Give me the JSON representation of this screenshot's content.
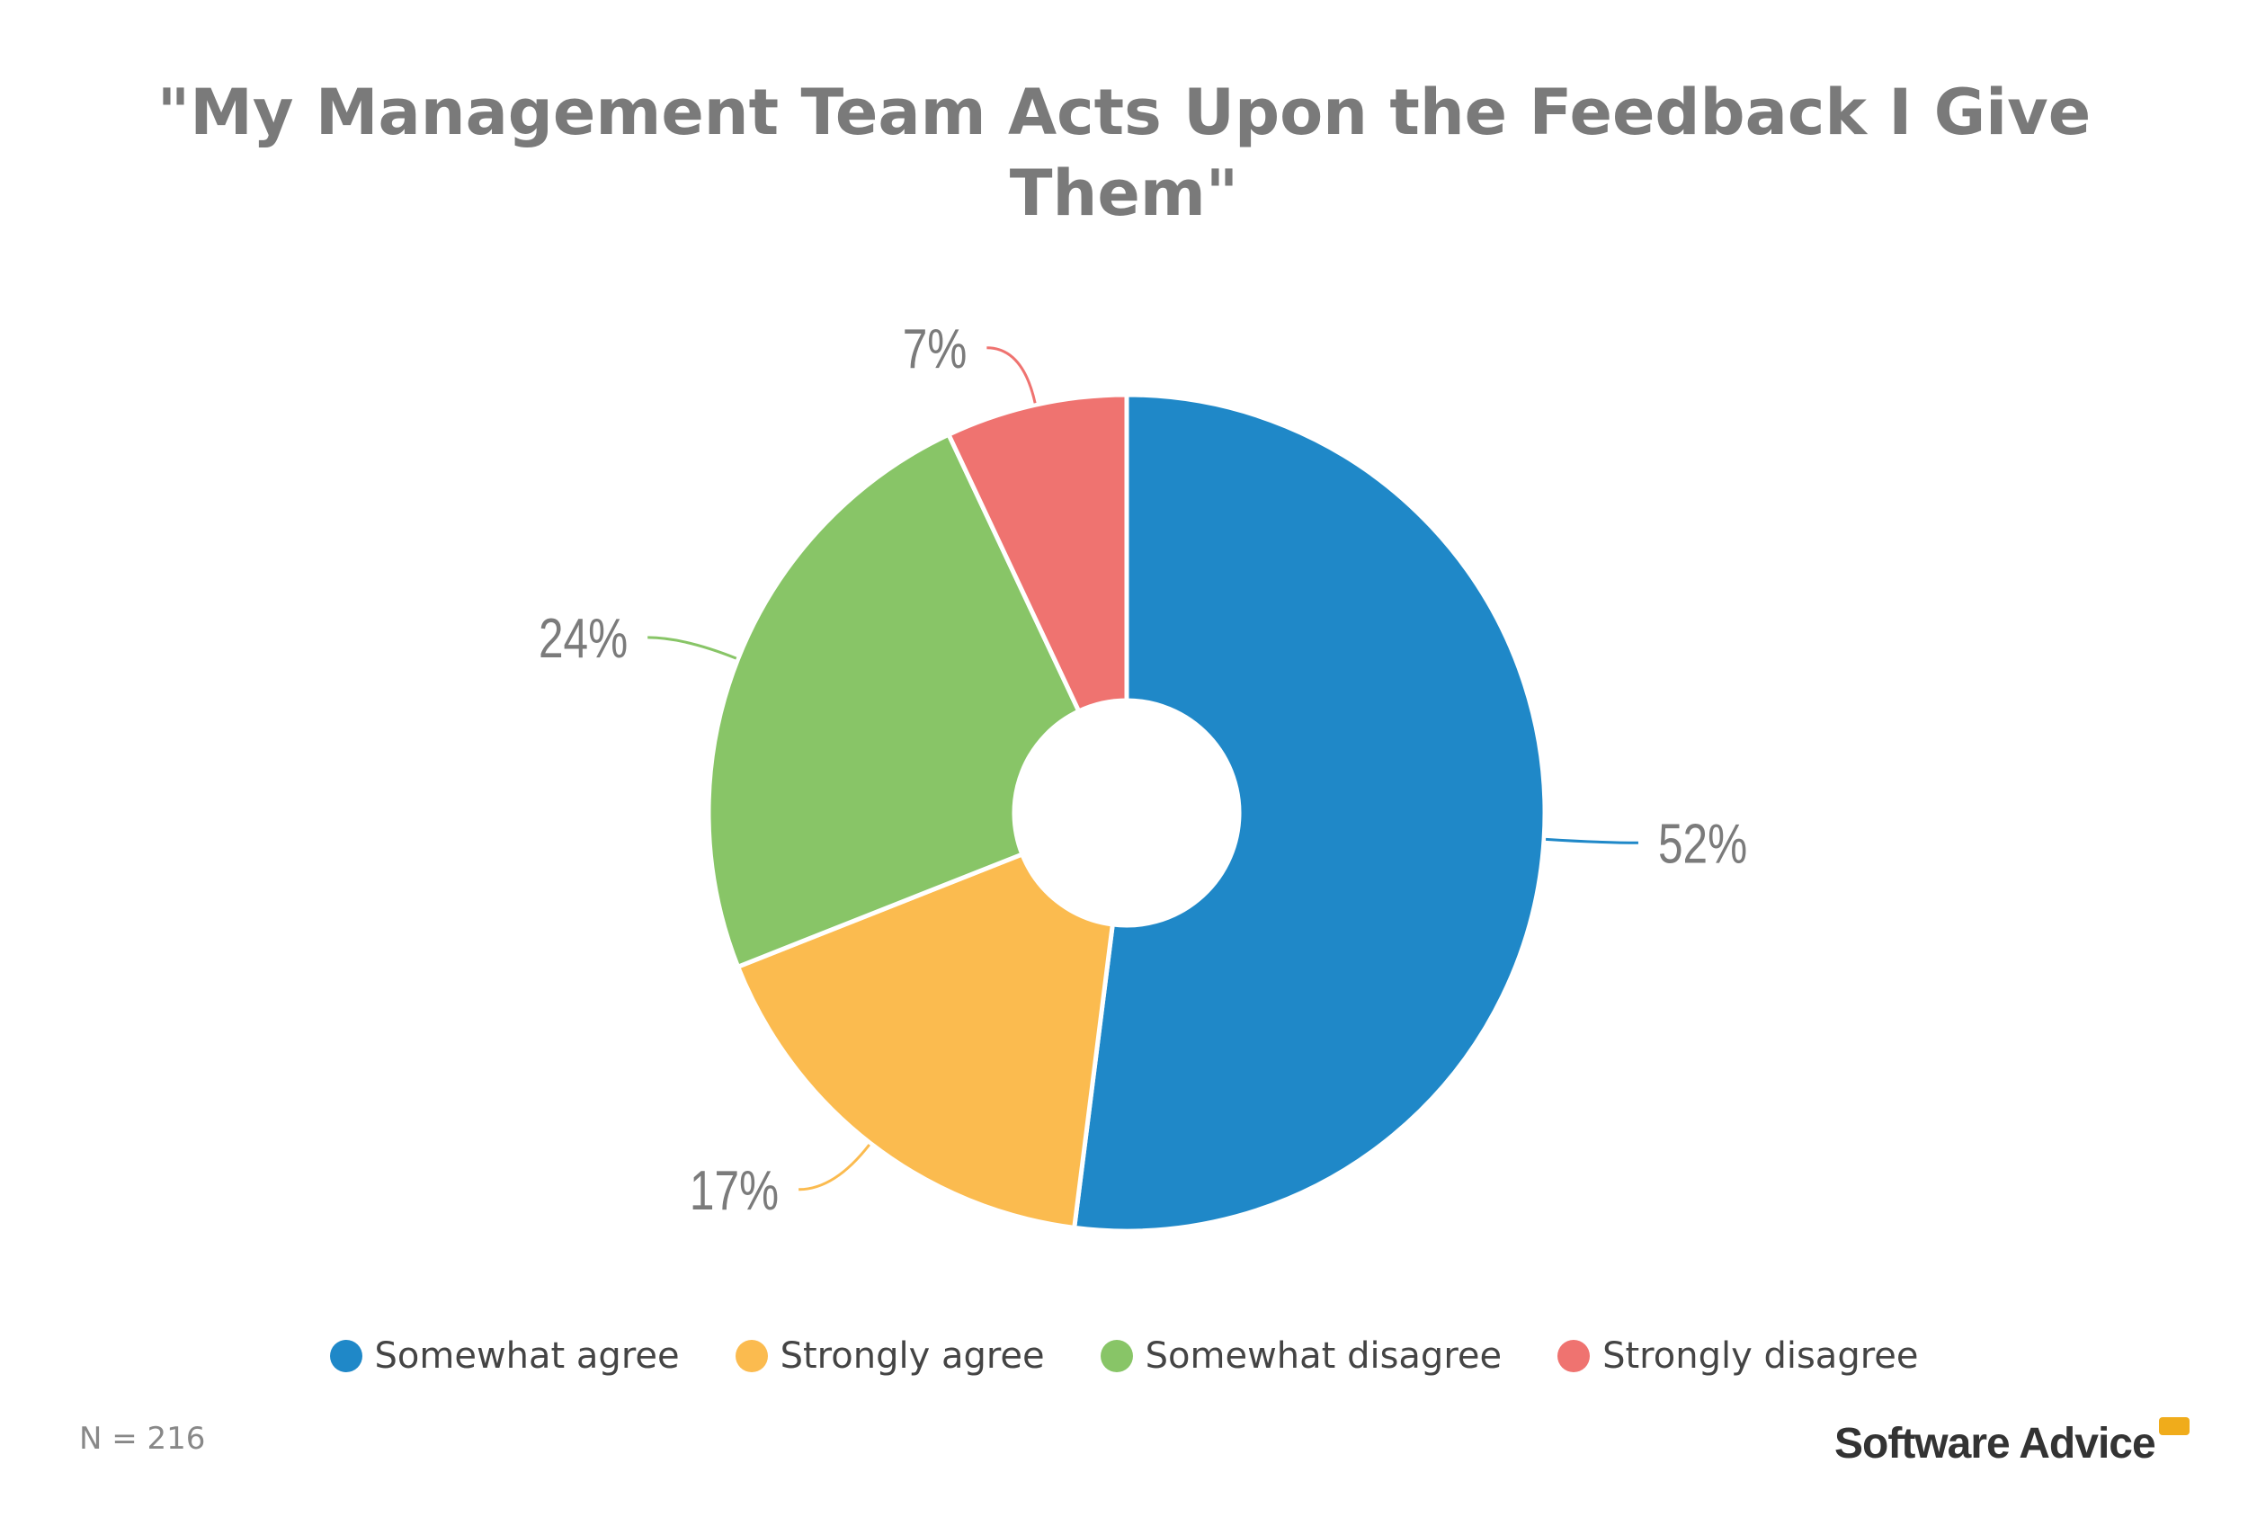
{
  "chart_data": {
    "type": "pie",
    "donut": true,
    "title": "\"My Management Team Acts Upon the Feedback I Give Them\"",
    "categories": [
      "Somewhat agree",
      "Strongly agree",
      "Somewhat disagree",
      "Strongly disagree"
    ],
    "values": [
      52,
      17,
      24,
      7
    ],
    "data_labels": [
      "52%",
      "17%",
      "24%",
      "7%"
    ],
    "colors": [
      "#1f88c8",
      "#fbbb4f",
      "#88c567",
      "#ef7370"
    ],
    "legend_position": "bottom",
    "note": "N = 216"
  },
  "branding": {
    "logo_text": "Software Advice",
    "logo_color": "#f0ac1b"
  }
}
